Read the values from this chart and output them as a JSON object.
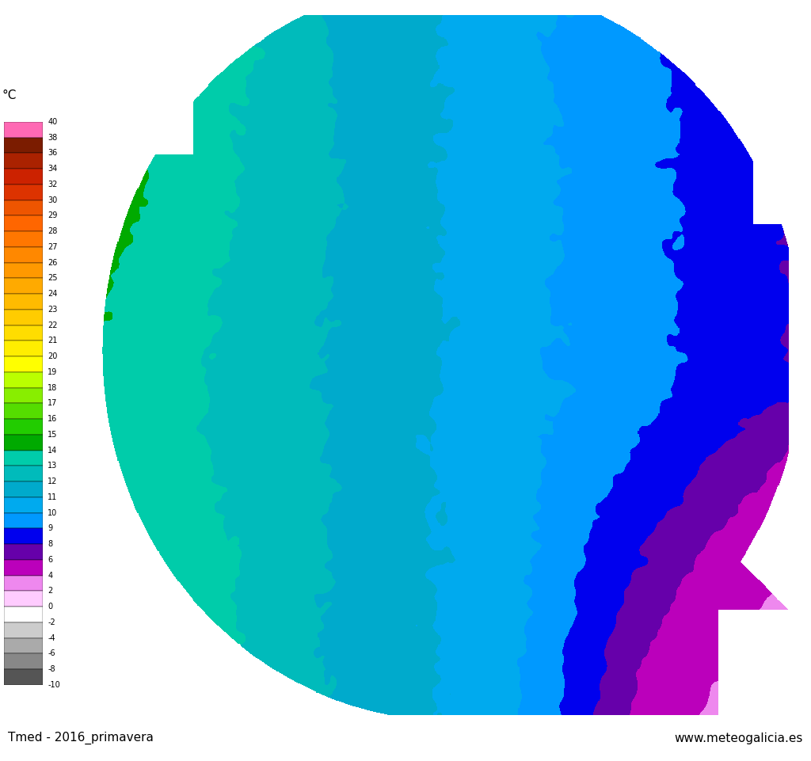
{
  "title_left": "Tmed - 2016_primavera",
  "title_right": "www.meteogalicia.es",
  "colorbar_label": "°C",
  "levels": [
    40,
    38,
    36,
    34,
    32,
    30,
    29,
    28,
    27,
    26,
    25,
    24,
    23,
    22,
    21,
    20,
    19,
    18,
    17,
    16,
    15,
    14,
    13,
    12,
    11,
    10,
    9,
    8,
    6,
    4,
    2,
    0,
    -2,
    -4,
    -6,
    -8,
    -10
  ],
  "colors": [
    "#FF69B4",
    "#7B1C00",
    "#AA2200",
    "#CC2200",
    "#DD3300",
    "#EE5500",
    "#FF6600",
    "#FF7700",
    "#FF8800",
    "#FF9900",
    "#FFAA00",
    "#FFBB00",
    "#FFCC00",
    "#FFDD00",
    "#FFEE00",
    "#FFFF00",
    "#BBFF00",
    "#88EE00",
    "#55DD00",
    "#22CC00",
    "#00AA00",
    "#00CCAA",
    "#00BBBB",
    "#00AACC",
    "#00AAEE",
    "#0099FF",
    "#0000EE",
    "#6600AA",
    "#BB00BB",
    "#EE88EE",
    "#FFCCFF",
    "#FFFFFF",
    "#CCCCCC",
    "#AAAAAA",
    "#888888",
    "#555555",
    "#222222"
  ],
  "background_color": "#ffffff",
  "figsize": [
    10.24,
    9.61
  ],
  "dpi": 100,
  "map_colors": {
    "deep_blue": "#1B3CCC",
    "medium_blue": "#2255EE",
    "light_blue": "#44AAFF",
    "cyan": "#00CCFF",
    "light_cyan": "#66DDFF",
    "teal": "#00BBCC",
    "purple": "#880099",
    "magenta": "#AA00AA",
    "light_purple": "#CC66CC",
    "lavender": "#DDAADD",
    "green": "#00BB44",
    "white": "#FFFFFF"
  }
}
